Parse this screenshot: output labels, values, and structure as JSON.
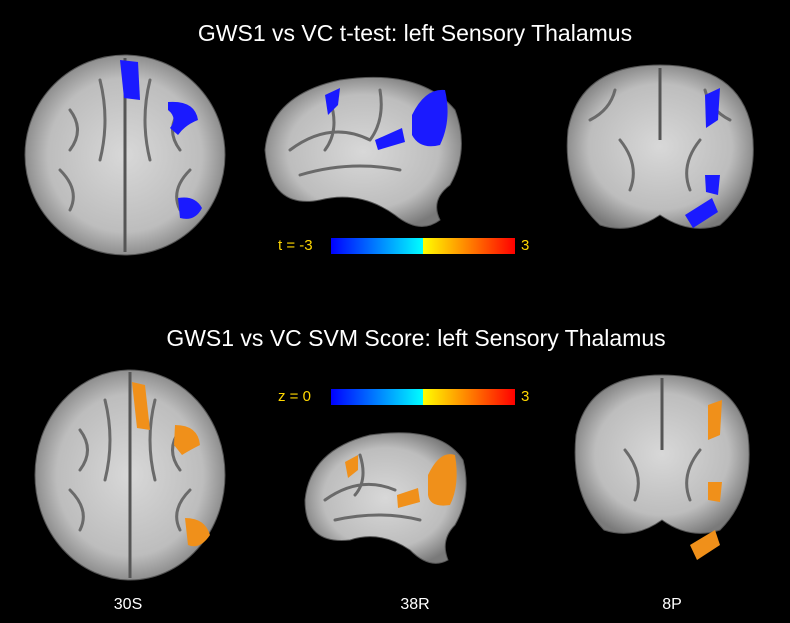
{
  "top_panel": {
    "title": "GWS1 vs VC t-test: left Sensory Thalamus",
    "colorbar": {
      "min_label": "t = -3",
      "max_label": "3"
    }
  },
  "bottom_panel": {
    "title": "GWS1 vs VC SVM Score: left Sensory Thalamus",
    "colorbar": {
      "min_label": "z = 0",
      "max_label": "3"
    }
  },
  "slice_labels": [
    "30S",
    "38R",
    "8P"
  ]
}
